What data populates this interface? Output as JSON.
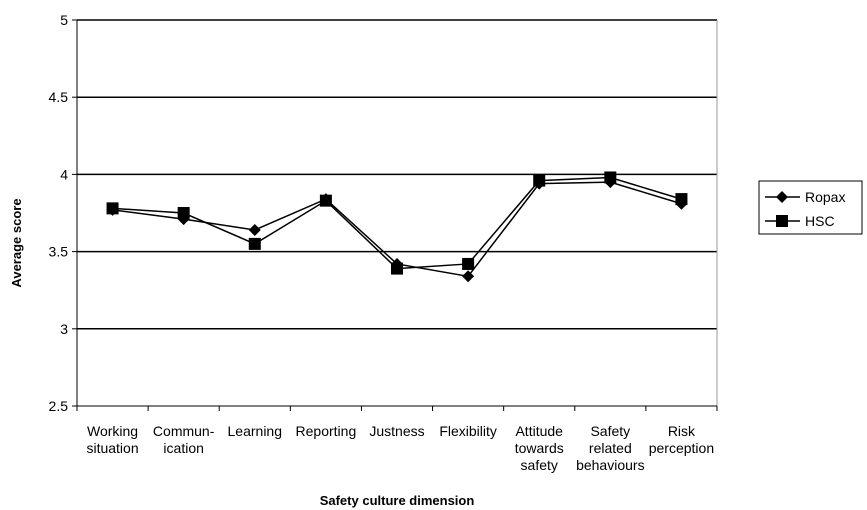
{
  "chart_data": {
    "type": "line",
    "title": "",
    "xlabel": "Safety culture dimension",
    "ylabel": "Average score",
    "ylim": [
      2.5,
      5
    ],
    "yticks": [
      "2.5",
      "3",
      "3.5",
      "4",
      "4.5",
      "5"
    ],
    "grid": "horizontal",
    "legend_position": "right",
    "categories": [
      [
        "Working",
        "situation"
      ],
      [
        "Commun-",
        "ication"
      ],
      [
        "Learning"
      ],
      [
        "Reporting"
      ],
      [
        "Justness"
      ],
      [
        "Flexibility"
      ],
      [
        "Attitude",
        "towards",
        "safety"
      ],
      [
        "Safety",
        "related",
        "behaviours"
      ],
      [
        "Risk",
        "perception"
      ]
    ],
    "series": [
      {
        "name": "Ropax",
        "marker": "diamond",
        "color": "#000000",
        "values": [
          3.77,
          3.71,
          3.64,
          3.84,
          3.42,
          3.34,
          3.94,
          3.95,
          3.81
        ]
      },
      {
        "name": "HSC",
        "marker": "square",
        "color": "#000000",
        "values": [
          3.78,
          3.75,
          3.55,
          3.83,
          3.39,
          3.42,
          3.96,
          3.98,
          3.84
        ]
      }
    ]
  }
}
